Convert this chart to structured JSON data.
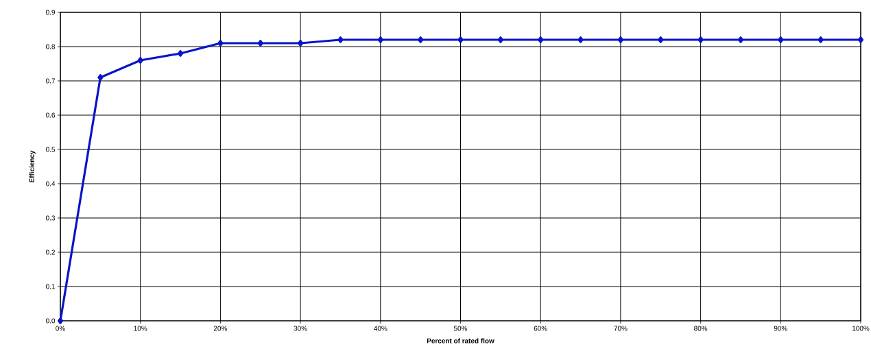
{
  "chart_data": {
    "type": "line",
    "xlabel": "Percent of rated flow",
    "ylabel": "Efficiency",
    "x": [
      0,
      5,
      10,
      15,
      20,
      25,
      30,
      35,
      40,
      45,
      50,
      55,
      60,
      65,
      70,
      75,
      80,
      85,
      90,
      95,
      100
    ],
    "series": [
      {
        "color": "#0a14c8",
        "values": [
          0,
          0.71,
          0.76,
          0.78,
          0.81,
          0.81,
          0.81,
          0.82,
          0.82,
          0.82,
          0.82,
          0.82,
          0.82,
          0.82,
          0.82,
          0.82,
          0.82,
          0.82,
          0.82,
          0.82,
          0.82
        ]
      }
    ],
    "xlim": [
      0,
      100
    ],
    "ylim": [
      0,
      0.9
    ],
    "xticks": [
      {
        "value": 0,
        "label": "0%"
      },
      {
        "value": 10,
        "label": "10%"
      },
      {
        "value": 20,
        "label": "20%"
      },
      {
        "value": 30,
        "label": "30%"
      },
      {
        "value": 40,
        "label": "40%"
      },
      {
        "value": 50,
        "label": "50%"
      },
      {
        "value": 60,
        "label": "60%"
      },
      {
        "value": 70,
        "label": "70%"
      },
      {
        "value": 80,
        "label": "80%"
      },
      {
        "value": 90,
        "label": "90%"
      },
      {
        "value": 100,
        "label": "100%"
      }
    ],
    "yticks": [
      {
        "value": 0,
        "label": "0.0"
      },
      {
        "value": 0.1,
        "label": "0.1"
      },
      {
        "value": 0.2,
        "label": "0.2"
      },
      {
        "value": 0.3,
        "label": "0.3"
      },
      {
        "value": 0.4,
        "label": "0.4"
      },
      {
        "value": 0.5,
        "label": "0.5"
      },
      {
        "value": 0.6,
        "label": "0.6"
      },
      {
        "value": 0.7,
        "label": "0.7"
      },
      {
        "value": 0.8,
        "label": "0.8"
      },
      {
        "value": 0.9,
        "label": "0.9"
      }
    ],
    "grid": true,
    "marker": "diamond",
    "line_style": "solid"
  }
}
